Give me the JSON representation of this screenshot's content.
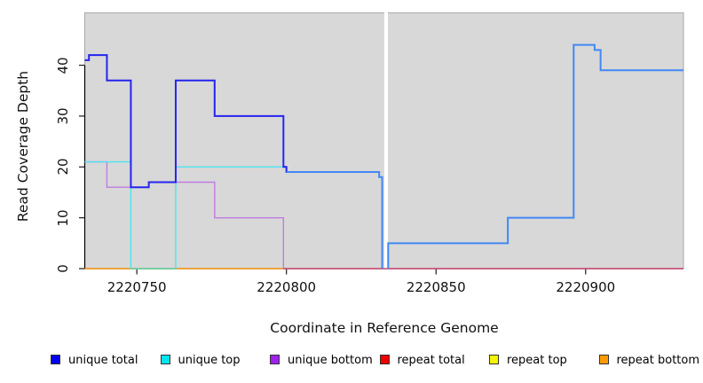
{
  "chart_data": {
    "type": "line",
    "subtype": "step",
    "title": "",
    "xlabel": "Coordinate in Reference Genome",
    "ylabel": "Read Coverage Depth",
    "xlim": [
      2220732.6,
      2220932.7
    ],
    "ylim": [
      0,
      50.3
    ],
    "x_ticks": [
      "2220750",
      "2220800",
      "2220850",
      "2220900"
    ],
    "x_tick_values": [
      2220750,
      2220800,
      2220850,
      2220900
    ],
    "y_ticks": [
      "0",
      "10",
      "20",
      "30",
      "40"
    ],
    "y_tick_values": [
      0,
      10,
      20,
      30,
      40
    ],
    "grid": false,
    "legend_position": "bottom",
    "colors": {
      "plot_bg": "#d8d8d8",
      "plot_border": "#a9a9a9",
      "axis": "#000000",
      "unique_total_left": "#2424ef",
      "unique_total_right": "#4287f5",
      "unique_top": "#4fe3ee",
      "unique_bottom": "#bd7de0",
      "repeat_total": "#ee0000",
      "repeat_top": "#f5f500",
      "repeat_bottom": "#ff9f1a",
      "zero_overlap_teal": "#70cfa0",
      "zero_overlap_pink": "#d04e78"
    },
    "gap": {
      "x_start": 2220832.7,
      "x_end": 2220833.9,
      "note": "white no-data strip through plot"
    },
    "series": [
      {
        "name": "unique total",
        "segments": [
          [
            2220732.6,
            2220734,
            41
          ],
          [
            2220734,
            2220740,
            42
          ],
          [
            2220740,
            2220748,
            37
          ],
          [
            2220748,
            2220754,
            16
          ],
          [
            2220754,
            2220763,
            17
          ],
          [
            2220763,
            2220776,
            37
          ],
          [
            2220776,
            2220799,
            30
          ],
          [
            2220799,
            2220800,
            20
          ],
          [
            2220800,
            2220831,
            19
          ],
          [
            2220831,
            2220832,
            18
          ],
          [
            2220832,
            2220832,
            0
          ],
          [
            2220834,
            2220834,
            0
          ],
          [
            2220834,
            2220874,
            5
          ],
          [
            2220874,
            2220896,
            10
          ],
          [
            2220896,
            2220903,
            44
          ],
          [
            2220903,
            2220905,
            43
          ],
          [
            2220905,
            2220932.7,
            39
          ]
        ]
      },
      {
        "name": "unique top",
        "segments": [
          [
            2220732.6,
            2220748,
            21
          ],
          [
            2220748,
            2220763,
            0
          ],
          [
            2220763,
            2220799,
            20
          ]
        ]
      },
      {
        "name": "unique bottom",
        "segments": [
          [
            2220732.6,
            2220740,
            21
          ],
          [
            2220740,
            2220754,
            16
          ],
          [
            2220754,
            2220776,
            17
          ],
          [
            2220776,
            2220799,
            10
          ],
          [
            2220799,
            2220932.7,
            0
          ]
        ]
      },
      {
        "name": "repeat total",
        "segments": [
          [
            2220732.6,
            2220932.7,
            0
          ]
        ]
      },
      {
        "name": "repeat top",
        "segments": [
          [
            2220732.6,
            2220932.7,
            0
          ]
        ]
      },
      {
        "name": "repeat bottom",
        "segments": [
          [
            2220732.6,
            2220932.7,
            0
          ]
        ]
      }
    ],
    "render_polylines": [
      {
        "name": "repeat-bottom-zero-line",
        "color": "#ff9f1a",
        "width": 1.5,
        "segments": [
          [
            2220732.6,
            2220799,
            0
          ]
        ]
      },
      {
        "name": "unique-bottom-line",
        "color": "#bd7de0",
        "width": 1.4,
        "segments": [
          [
            2220732.6,
            2220740,
            21
          ],
          [
            2220740,
            2220754,
            16
          ],
          [
            2220754,
            2220776,
            17
          ],
          [
            2220776,
            2220799,
            10
          ],
          [
            2220799,
            2220799,
            0
          ]
        ]
      },
      {
        "name": "unique-top-line",
        "color": "#4fe3ee",
        "width": 1.4,
        "segments": [
          [
            2220732.6,
            2220748,
            21
          ],
          [
            2220748,
            2220763,
            0
          ],
          [
            2220763,
            2220799,
            20
          ]
        ]
      },
      {
        "name": "unique-top-over-repeat-bottom-blend",
        "color": "#70cfa0",
        "width": 1.4,
        "segments": [
          [
            2220748,
            2220763,
            0
          ]
        ]
      },
      {
        "name": "unique-total-left-line",
        "color": "#2424ef",
        "width": 2,
        "segments": [
          [
            2220732.6,
            2220734,
            41
          ],
          [
            2220734,
            2220740,
            42
          ],
          [
            2220740,
            2220748,
            37
          ],
          [
            2220748,
            2220754,
            16
          ],
          [
            2220754,
            2220763,
            17
          ],
          [
            2220763,
            2220776,
            37
          ],
          [
            2220776,
            2220799,
            30
          ],
          [
            2220799,
            2220800,
            20
          ],
          [
            2220800,
            2220800.8,
            19
          ]
        ]
      },
      {
        "name": "zero-line-right-blend",
        "color": "#d04e78",
        "width": 1.5,
        "segments": [
          [
            2220799,
            2220932.7,
            0
          ]
        ]
      },
      {
        "name": "unique-total-right-line-a",
        "color": "#4287f5",
        "width": 2,
        "segments": [
          [
            2220800,
            2220831,
            19
          ],
          [
            2220831,
            2220832,
            18
          ],
          [
            2220832,
            2220832,
            0
          ]
        ]
      },
      {
        "name": "unique-total-right-line-b",
        "color": "#4287f5",
        "width": 2,
        "segments": [
          [
            2220834,
            2220834,
            0
          ],
          [
            2220834,
            2220874,
            5
          ],
          [
            2220874,
            2220896,
            10
          ],
          [
            2220896,
            2220903,
            44
          ],
          [
            2220903,
            2220905,
            43
          ],
          [
            2220905,
            2220932.7,
            39
          ]
        ]
      }
    ],
    "gap_after_index": 5,
    "legend": [
      {
        "label": "unique total",
        "color": "#0000ee"
      },
      {
        "label": "unique top",
        "color": "#00e5ee"
      },
      {
        "label": "unique bottom",
        "color": "#a020f0"
      },
      {
        "label": "repeat total",
        "color": "#ee0000"
      },
      {
        "label": "repeat top",
        "color": "#f5f500"
      },
      {
        "label": "repeat bottom",
        "color": "#ff9b00"
      }
    ]
  }
}
